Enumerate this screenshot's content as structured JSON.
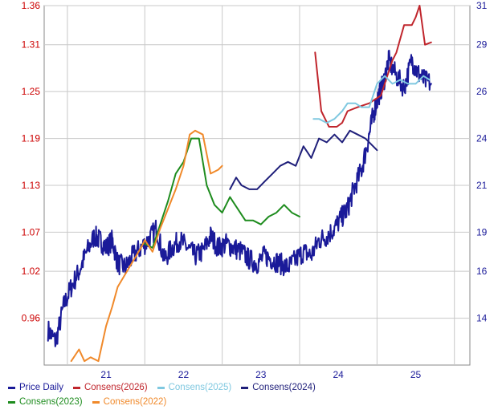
{
  "colors": {
    "price": "#1a1a99",
    "c2026": "#c0262d",
    "c2025": "#7fc8e0",
    "c2024": "#1f1f7a",
    "c2023": "#1e8c1e",
    "c2022": "#f0892a",
    "left_axis": "#cc0000",
    "right_axis": "#1a1a99",
    "grid": "#c8c8c8"
  },
  "chart_data": {
    "type": "line",
    "title": "",
    "left_axis": {
      "ticks": [
        "0.96",
        "1.02",
        "1.07",
        "1.13",
        "1.19",
        "1.25",
        "1.31",
        "1.36"
      ],
      "tick_values": [
        0.96,
        1.02,
        1.07,
        1.13,
        1.19,
        1.25,
        1.31,
        1.36
      ],
      "range": [
        0.9,
        1.36
      ]
    },
    "right_axis": {
      "ticks": [
        "14",
        "16",
        "19",
        "21",
        "24",
        "26",
        "29",
        "31"
      ],
      "tick_values": [
        14,
        16,
        19,
        21,
        24,
        26,
        29,
        31
      ]
    },
    "x_axis": {
      "ticks": [
        "21",
        "22",
        "23",
        "24",
        "25"
      ],
      "tick_values": [
        2021,
        2022,
        2023,
        2024,
        2025
      ],
      "range": [
        2020.2,
        2025.7
      ]
    },
    "grid": true,
    "legend_position": "bottom",
    "legend": [
      {
        "label": "Price Daily",
        "color_key": "price"
      },
      {
        "label": "Consens(2026)",
        "color_key": "c2026"
      },
      {
        "label": "Consens(2025)",
        "color_key": "c2025"
      },
      {
        "label": "Consens(2024)",
        "color_key": "c2024"
      },
      {
        "label": "Consens(2023)",
        "color_key": "c2023"
      },
      {
        "label": "Consens(2022)",
        "color_key": "c2022"
      }
    ],
    "series": [
      {
        "key": "price",
        "color_key": "price",
        "width": 2,
        "jitter": true,
        "x": [
          2020.25,
          2020.35,
          2020.45,
          2020.55,
          2020.65,
          2020.75,
          2020.85,
          2020.92,
          2021.0,
          2021.08,
          2021.15,
          2021.25,
          2021.35,
          2021.45,
          2021.55,
          2021.65,
          2021.75,
          2021.85,
          2021.95,
          2022.05,
          2022.15,
          2022.25,
          2022.35,
          2022.45,
          2022.55,
          2022.65,
          2022.75,
          2022.85,
          2022.95,
          2023.05,
          2023.15,
          2023.25,
          2023.35,
          2023.45,
          2023.55,
          2023.65,
          2023.75,
          2023.85,
          2023.95,
          2024.05,
          2024.12,
          2024.2,
          2024.3,
          2024.38,
          2024.45,
          2024.52,
          2024.58,
          2024.65,
          2024.75,
          2024.85,
          2024.95,
          2025.02,
          2025.1,
          2025.2
        ],
        "y": [
          0.945,
          0.93,
          0.975,
          1.0,
          1.02,
          1.045,
          1.065,
          1.06,
          1.05,
          1.06,
          1.03,
          1.025,
          1.04,
          1.05,
          1.06,
          1.075,
          1.035,
          1.05,
          1.06,
          1.05,
          1.04,
          1.045,
          1.065,
          1.05,
          1.055,
          1.05,
          1.045,
          1.035,
          1.03,
          1.04,
          1.035,
          1.03,
          1.025,
          1.035,
          1.045,
          1.04,
          1.06,
          1.065,
          1.075,
          1.09,
          1.1,
          1.125,
          1.15,
          1.185,
          1.22,
          1.245,
          1.26,
          1.29,
          1.27,
          1.255,
          1.29,
          1.275,
          1.265,
          1.26
        ]
      },
      {
        "key": "c2026",
        "color_key": "c2026",
        "width": 2,
        "jitter": false,
        "x": [
          2023.7,
          2023.78,
          2023.88,
          2023.98,
          2024.05,
          2024.12,
          2024.25,
          2024.4,
          2024.55,
          2024.7,
          2024.75,
          2024.85,
          2024.95,
          2025.0,
          2025.05,
          2025.12,
          2025.2
        ],
        "y": [
          1.3,
          1.225,
          1.205,
          1.205,
          1.21,
          1.225,
          1.23,
          1.235,
          1.245,
          1.29,
          1.3,
          1.335,
          1.335,
          1.345,
          1.36,
          1.31,
          1.313
        ]
      },
      {
        "key": "c2025",
        "color_key": "c2025",
        "width": 2,
        "jitter": false,
        "x": [
          2023.68,
          2023.75,
          2023.85,
          2023.95,
          2024.05,
          2024.12,
          2024.22,
          2024.3,
          2024.4,
          2024.5,
          2024.6,
          2024.7,
          2024.8,
          2024.9,
          2025.0,
          2025.1,
          2025.18
        ],
        "y": [
          1.215,
          1.215,
          1.21,
          1.215,
          1.225,
          1.235,
          1.235,
          1.23,
          1.23,
          1.26,
          1.27,
          1.26,
          1.265,
          1.26,
          1.26,
          1.27,
          1.265
        ]
      },
      {
        "key": "c2024",
        "color_key": "c2024",
        "width": 2,
        "jitter": false,
        "x": [
          2022.6,
          2022.68,
          2022.75,
          2022.85,
          2022.95,
          2023.05,
          2023.15,
          2023.25,
          2023.35,
          2023.45,
          2023.55,
          2023.65,
          2023.75,
          2023.85,
          2023.95,
          2024.05,
          2024.15,
          2024.25,
          2024.35,
          2024.5
        ],
        "y": [
          1.125,
          1.14,
          1.13,
          1.125,
          1.125,
          1.135,
          1.145,
          1.155,
          1.16,
          1.155,
          1.18,
          1.165,
          1.19,
          1.185,
          1.195,
          1.185,
          1.2,
          1.195,
          1.19,
          1.175
        ]
      },
      {
        "key": "c2023",
        "color_key": "c2023",
        "width": 2,
        "jitter": false,
        "x": [
          2021.5,
          2021.6,
          2021.7,
          2021.8,
          2021.9,
          2022.0,
          2022.1,
          2022.2,
          2022.3,
          2022.4,
          2022.5,
          2022.6,
          2022.7,
          2022.8,
          2022.9,
          2023.0,
          2023.1,
          2023.2,
          2023.3,
          2023.4,
          2023.5
        ],
        "y": [
          1.055,
          1.05,
          1.08,
          1.11,
          1.145,
          1.16,
          1.19,
          1.19,
          1.13,
          1.105,
          1.095,
          1.115,
          1.1,
          1.085,
          1.085,
          1.08,
          1.09,
          1.095,
          1.105,
          1.095,
          1.09
        ]
      },
      {
        "key": "c2022",
        "color_key": "c2022",
        "width": 2,
        "jitter": false,
        "x": [
          2020.55,
          2020.65,
          2020.72,
          2020.8,
          2020.9,
          2021.0,
          2021.08,
          2021.15,
          2021.3,
          2021.45,
          2021.5,
          2021.6,
          2021.7,
          2021.8,
          2021.9,
          2022.0,
          2022.08,
          2022.15,
          2022.25,
          2022.35,
          2022.45,
          2022.5
        ],
        "y": [
          0.905,
          0.92,
          0.905,
          0.91,
          0.905,
          0.95,
          0.975,
          1.0,
          1.025,
          1.05,
          1.06,
          1.045,
          1.075,
          1.1,
          1.125,
          1.155,
          1.195,
          1.2,
          1.195,
          1.145,
          1.15,
          1.155
        ]
      }
    ]
  }
}
